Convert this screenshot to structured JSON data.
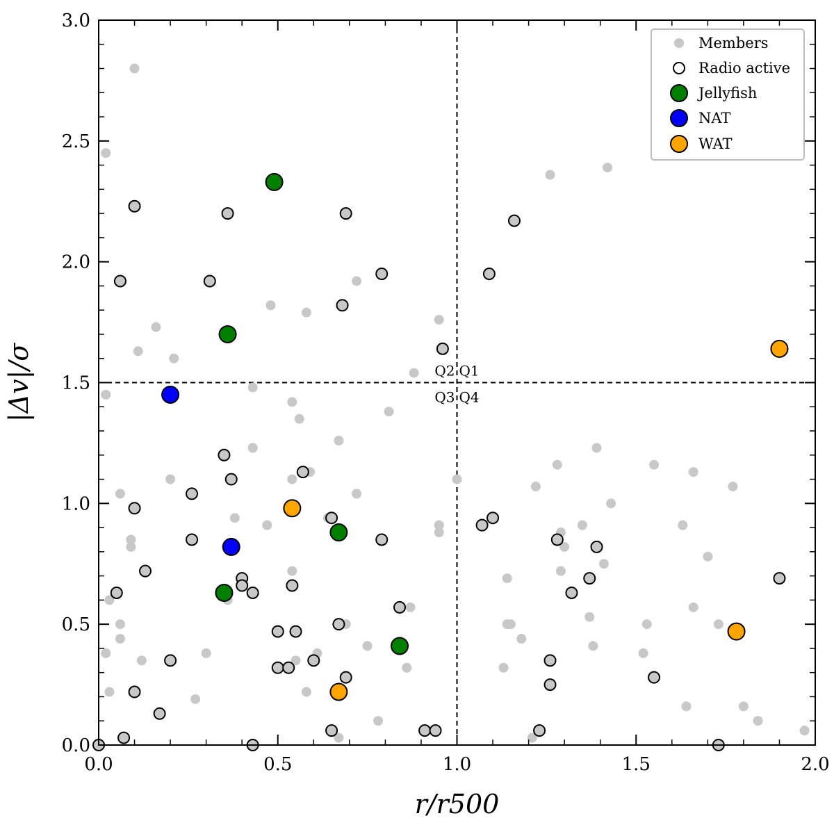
{
  "chart_data": {
    "type": "scatter",
    "xlabel": "r/r500",
    "ylabel": "|Δv|/σ",
    "xlim": [
      0,
      2
    ],
    "ylim": [
      0,
      3
    ],
    "xticks": [
      "0.0",
      "0.5",
      "1.0",
      "1.5",
      "2.0"
    ],
    "yticks": [
      "0.0",
      "0.5",
      "1.0",
      "1.5",
      "2.0",
      "2.5",
      "3.0"
    ],
    "reference_lines": {
      "vertical_x": 1.0,
      "horizontal_y": 1.5
    },
    "quadrants": [
      "Q2",
      "Q1",
      "Q3",
      "Q4"
    ],
    "legend_position": "top-right",
    "series": [
      {
        "name": "Members",
        "color": "#c8c8c8",
        "points": [
          [
            0.1,
            2.8
          ],
          [
            0.02,
            2.45
          ],
          [
            0.16,
            1.73
          ],
          [
            0.11,
            1.63
          ],
          [
            0.21,
            1.6
          ],
          [
            0.02,
            1.45
          ],
          [
            0.43,
            1.48
          ],
          [
            0.48,
            1.82
          ],
          [
            0.58,
            1.79
          ],
          [
            0.72,
            1.92
          ],
          [
            0.88,
            1.54
          ],
          [
            0.95,
            1.76
          ],
          [
            0.54,
            1.42
          ],
          [
            0.56,
            1.35
          ],
          [
            0.81,
            1.38
          ],
          [
            0.67,
            1.26
          ],
          [
            0.43,
            1.23
          ],
          [
            0.2,
            1.1
          ],
          [
            0.54,
            1.1
          ],
          [
            0.59,
            1.13
          ],
          [
            0.06,
            1.04
          ],
          [
            0.72,
            1.04
          ],
          [
            0.38,
            0.94
          ],
          [
            0.64,
            0.94
          ],
          [
            0.47,
            0.91
          ],
          [
            0.95,
            0.91
          ],
          [
            0.95,
            0.88
          ],
          [
            0.09,
            0.85
          ],
          [
            0.09,
            0.82
          ],
          [
            0.54,
            0.72
          ],
          [
            0.36,
            0.6
          ],
          [
            0.03,
            0.6
          ],
          [
            0.06,
            0.5
          ],
          [
            0.06,
            0.44
          ],
          [
            0.02,
            0.38
          ],
          [
            0.12,
            0.35
          ],
          [
            0.3,
            0.38
          ],
          [
            0.03,
            0.22
          ],
          [
            0.27,
            0.19
          ],
          [
            0.55,
            0.35
          ],
          [
            0.61,
            0.38
          ],
          [
            0.58,
            0.22
          ],
          [
            0.69,
            0.5
          ],
          [
            0.75,
            0.41
          ],
          [
            0.87,
            0.57
          ],
          [
            0.86,
            0.32
          ],
          [
            0.78,
            0.1
          ],
          [
            0.67,
            0.03
          ],
          [
            1.0,
            1.1
          ],
          [
            1.22,
            1.07
          ],
          [
            1.28,
            1.16
          ],
          [
            1.39,
            1.23
          ],
          [
            1.55,
            1.16
          ],
          [
            1.66,
            1.13
          ],
          [
            1.77,
            1.07
          ],
          [
            1.43,
            1.0
          ],
          [
            1.35,
            0.91
          ],
          [
            1.29,
            0.88
          ],
          [
            1.63,
            0.91
          ],
          [
            1.3,
            0.82
          ],
          [
            1.41,
            0.75
          ],
          [
            1.29,
            0.72
          ],
          [
            1.14,
            0.69
          ],
          [
            1.7,
            0.78
          ],
          [
            1.37,
            0.53
          ],
          [
            1.15,
            0.5
          ],
          [
            1.14,
            0.5
          ],
          [
            1.18,
            0.44
          ],
          [
            1.53,
            0.5
          ],
          [
            1.66,
            0.57
          ],
          [
            1.73,
            0.5
          ],
          [
            1.52,
            0.38
          ],
          [
            1.38,
            0.41
          ],
          [
            1.13,
            0.32
          ],
          [
            1.21,
            0.03
          ],
          [
            1.64,
            0.16
          ],
          [
            1.8,
            0.16
          ],
          [
            1.84,
            0.1
          ],
          [
            1.97,
            0.06
          ],
          [
            1.26,
            2.36
          ],
          [
            1.42,
            2.39
          ]
        ]
      },
      {
        "name": "Radio active",
        "color": "#c8c8c8",
        "points": [
          [
            0.1,
            2.23
          ],
          [
            0.36,
            2.2
          ],
          [
            0.69,
            2.2
          ],
          [
            1.16,
            2.17
          ],
          [
            0.06,
            1.92
          ],
          [
            0.31,
            1.92
          ],
          [
            0.79,
            1.95
          ],
          [
            1.09,
            1.95
          ],
          [
            0.68,
            1.82
          ],
          [
            0.96,
            1.64
          ],
          [
            0.35,
            1.2
          ],
          [
            0.37,
            1.1
          ],
          [
            0.57,
            1.13
          ],
          [
            0.26,
            1.04
          ],
          [
            0.1,
            0.98
          ],
          [
            0.65,
            0.94
          ],
          [
            1.1,
            0.94
          ],
          [
            1.07,
            0.91
          ],
          [
            0.26,
            0.85
          ],
          [
            0.79,
            0.85
          ],
          [
            1.28,
            0.85
          ],
          [
            1.39,
            0.82
          ],
          [
            0.13,
            0.72
          ],
          [
            0.4,
            0.69
          ],
          [
            0.4,
            0.66
          ],
          [
            0.54,
            0.66
          ],
          [
            0.43,
            0.63
          ],
          [
            0.05,
            0.63
          ],
          [
            1.37,
            0.69
          ],
          [
            1.32,
            0.63
          ],
          [
            1.9,
            0.69
          ],
          [
            0.84,
            0.57
          ],
          [
            0.67,
            0.5
          ],
          [
            0.5,
            0.47
          ],
          [
            0.55,
            0.47
          ],
          [
            0.2,
            0.35
          ],
          [
            0.6,
            0.35
          ],
          [
            1.26,
            0.35
          ],
          [
            0.5,
            0.32
          ],
          [
            0.53,
            0.32
          ],
          [
            0.69,
            0.28
          ],
          [
            0.1,
            0.22
          ],
          [
            1.55,
            0.28
          ],
          [
            1.26,
            0.25
          ],
          [
            0.17,
            0.13
          ],
          [
            0.07,
            0.03
          ],
          [
            0.65,
            0.06
          ],
          [
            0.91,
            0.06
          ],
          [
            0.94,
            0.06
          ],
          [
            1.23,
            0.06
          ],
          [
            0.0,
            0.0
          ],
          [
            0.43,
            0.0
          ],
          [
            1.73,
            0.0
          ]
        ]
      },
      {
        "name": "Jellyfish",
        "color": "#007f00",
        "points": [
          [
            0.49,
            2.33
          ],
          [
            0.36,
            1.7
          ],
          [
            0.67,
            0.88
          ],
          [
            0.35,
            0.63
          ],
          [
            0.84,
            0.41
          ]
        ]
      },
      {
        "name": "NAT",
        "color": "#0000ff",
        "points": [
          [
            0.2,
            1.45
          ],
          [
            0.37,
            0.82
          ]
        ]
      },
      {
        "name": "WAT",
        "color": "#ffa500",
        "points": [
          [
            1.9,
            1.64
          ],
          [
            0.54,
            0.98
          ],
          [
            1.78,
            0.47
          ],
          [
            0.67,
            0.22
          ]
        ]
      }
    ]
  }
}
